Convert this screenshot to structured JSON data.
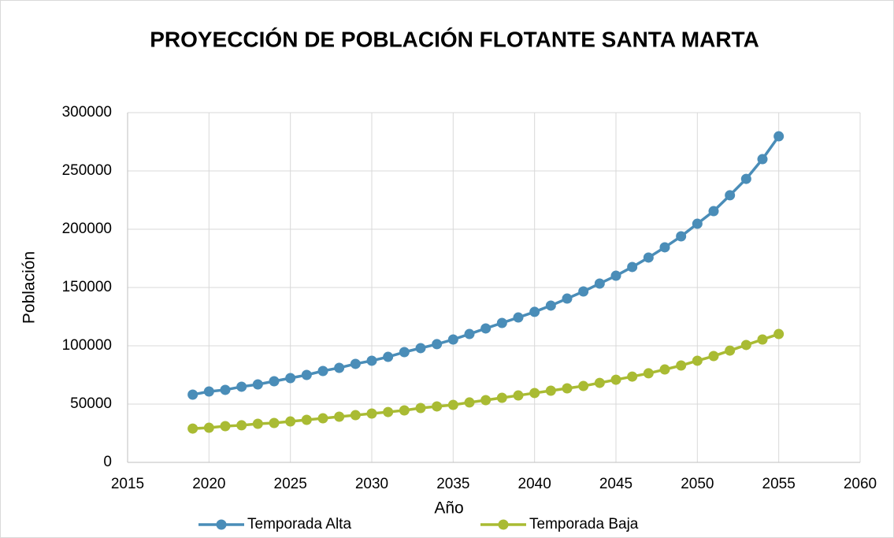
{
  "chart_data": {
    "type": "line",
    "title": "PROYECCIÓN DE POBLACIÓN FLOTANTE SANTA MARTA",
    "x_label": "Año",
    "y_label": "Población",
    "x": [
      2019,
      2020,
      2021,
      2022,
      2023,
      2024,
      2025,
      2026,
      2027,
      2028,
      2029,
      2030,
      2031,
      2032,
      2033,
      2034,
      2035,
      2036,
      2037,
      2038,
      2039,
      2040,
      2041,
      2042,
      2043,
      2044,
      2045,
      2046,
      2047,
      2048,
      2049,
      2050,
      2051,
      2052,
      2053,
      2054,
      2055
    ],
    "series": [
      {
        "name": "Temporada Alta",
        "color": "#4a8db8",
        "values": [
          58100,
          60800,
          62200,
          64900,
          66900,
          69600,
          72300,
          75000,
          78400,
          81100,
          84500,
          87200,
          90500,
          94600,
          98000,
          101400,
          105400,
          110100,
          114900,
          119600,
          124300,
          129100,
          134500,
          140500,
          146600,
          153400,
          160100,
          167600,
          175700,
          184500,
          193900,
          204700,
          215500,
          229100,
          243200,
          260100,
          279700
        ]
      },
      {
        "name": "Temporada Baja",
        "color": "#a9bb33",
        "values": [
          29000,
          29700,
          31100,
          31800,
          33100,
          33800,
          35100,
          36500,
          37800,
          39200,
          40500,
          41900,
          43200,
          44600,
          46600,
          48000,
          49300,
          51400,
          53400,
          55400,
          57400,
          59500,
          61500,
          63500,
          65500,
          68200,
          70900,
          73600,
          76400,
          79700,
          83100,
          87200,
          91200,
          95900,
          100700,
          105400,
          110100
        ]
      }
    ],
    "xlim": [
      2015,
      2060
    ],
    "xticks": [
      2015,
      2020,
      2025,
      2030,
      2035,
      2040,
      2045,
      2050,
      2055,
      2060
    ],
    "ylim": [
      0,
      300000
    ],
    "yticks": [
      0,
      50000,
      100000,
      150000,
      200000,
      250000,
      300000
    ],
    "grid": true,
    "legend": "bottom"
  }
}
